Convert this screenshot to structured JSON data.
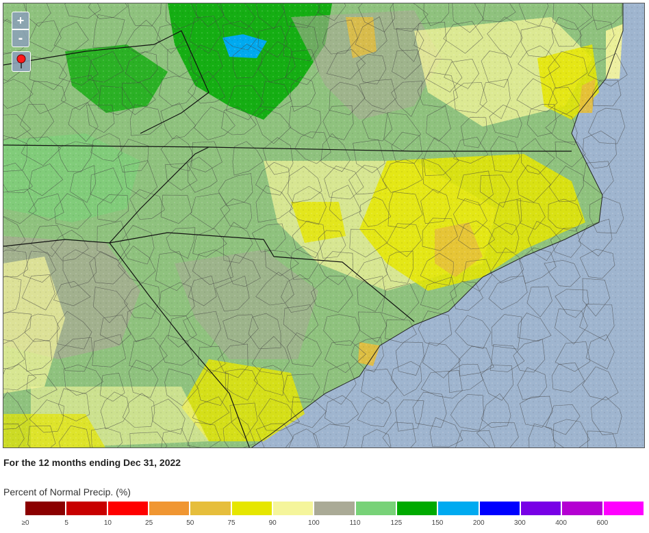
{
  "map": {
    "controls": {
      "zoom_in": "+",
      "zoom_out": "-",
      "pin": "location-pin-icon"
    },
    "colors": {
      "ocean": "#9fb5cf",
      "state_border": "#111111",
      "county_border": "#444444"
    }
  },
  "period_text": "For the 12 months ending Dec 31, 2022",
  "legend": {
    "title": "Percent of Normal Precip. (%)",
    "colors": [
      "#8b0000",
      "#c80000",
      "#ff0000",
      "#f09632",
      "#e6be3c",
      "#e6e600",
      "#f5f59b",
      "#aaaa96",
      "#78d278",
      "#00aa00",
      "#00aaf0",
      "#0000ff",
      "#7800e6",
      "#b400d2",
      "#ff00ff"
    ],
    "ticks": [
      "≥0",
      "5",
      "10",
      "25",
      "50",
      "75",
      "90",
      "100",
      "110",
      "125",
      "150",
      "200",
      "300",
      "400",
      "600"
    ]
  }
}
